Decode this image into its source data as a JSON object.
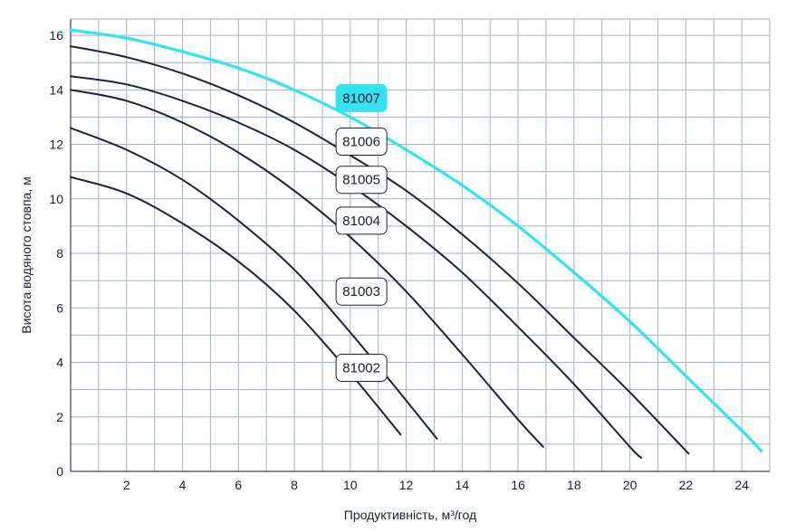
{
  "chart_data": {
    "type": "line",
    "title": "",
    "xlabel": "Продуктивність, м³/год",
    "ylabel": "Висота водяного стовпа, м",
    "xlim": [
      0,
      25
    ],
    "ylim": [
      0,
      16.6
    ],
    "grid": true,
    "x_ticks": [
      "2",
      "4",
      "6",
      "8",
      "10",
      "12",
      "14",
      "16",
      "18",
      "20",
      "22",
      "24"
    ],
    "y_ticks": [
      "0",
      "2",
      "4",
      "6",
      "8",
      "10",
      "12",
      "14",
      "16"
    ],
    "highlight_color": "#33e3f0",
    "line_color": "#1a2234",
    "series": [
      {
        "name": "81002",
        "highlight": false,
        "label_at": [
          10.4,
          3.8
        ],
        "x": [
          0,
          2,
          4,
          6,
          8,
          10,
          11.8
        ],
        "y": [
          10.8,
          10.2,
          9.1,
          7.7,
          5.9,
          3.6,
          1.35
        ]
      },
      {
        "name": "81003",
        "highlight": false,
        "label_at": [
          10.4,
          6.6
        ],
        "x": [
          0,
          2,
          4,
          6,
          8,
          10,
          12,
          13.1
        ],
        "y": [
          12.6,
          11.8,
          10.7,
          9.2,
          7.4,
          5.1,
          2.6,
          1.2
        ]
      },
      {
        "name": "81004",
        "highlight": false,
        "label_at": [
          10.4,
          9.2
        ],
        "x": [
          0,
          2,
          4,
          6,
          8,
          10,
          12,
          14,
          16,
          16.9
        ],
        "y": [
          14.0,
          13.6,
          12.8,
          11.7,
          10.3,
          8.6,
          6.6,
          4.3,
          1.9,
          0.9
        ]
      },
      {
        "name": "81005",
        "highlight": false,
        "label_at": [
          10.4,
          10.7
        ],
        "x": [
          0,
          2,
          4,
          6,
          8,
          10,
          12,
          14,
          16,
          18,
          20,
          20.4
        ],
        "y": [
          14.5,
          14.2,
          13.6,
          12.8,
          11.8,
          10.5,
          9.0,
          7.3,
          5.3,
          3.2,
          0.9,
          0.5
        ]
      },
      {
        "name": "81006",
        "highlight": false,
        "label_at": [
          10.4,
          12.1
        ],
        "x": [
          0,
          2,
          4,
          6,
          8,
          10,
          12,
          14,
          16,
          18,
          20,
          22.1
        ],
        "y": [
          15.6,
          15.2,
          14.6,
          13.8,
          12.8,
          11.6,
          10.3,
          8.7,
          6.9,
          4.9,
          2.9,
          0.65
        ]
      },
      {
        "name": "81007",
        "highlight": true,
        "label_at": [
          10.4,
          13.7
        ],
        "x": [
          0,
          2,
          4,
          6,
          8,
          10,
          12,
          14,
          16,
          18,
          20,
          22,
          24,
          24.7
        ],
        "y": [
          16.2,
          15.9,
          15.4,
          14.8,
          14.0,
          13.0,
          11.8,
          10.5,
          9.0,
          7.3,
          5.5,
          3.5,
          1.5,
          0.75
        ]
      }
    ]
  }
}
